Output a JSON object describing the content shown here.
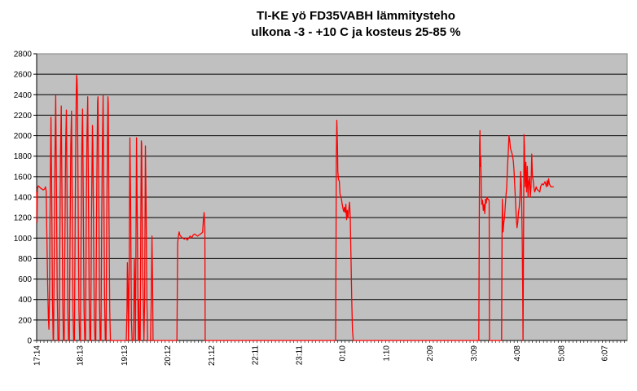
{
  "chart_data": {
    "type": "line",
    "title_line1": "TI-KE yö FD35VABH lämmitysteho",
    "title_line2": "ulkona -3 - +10 C ja kosteus 25-85 %",
    "xlabel": "",
    "ylabel": "",
    "ylim": [
      0,
      2800
    ],
    "yticks": [
      0,
      200,
      400,
      600,
      800,
      1000,
      1200,
      1400,
      1600,
      1800,
      2000,
      2200,
      2400,
      2600,
      2800
    ],
    "x_tick_labels": [
      "17:14",
      "18:13",
      "19:13",
      "20:12",
      "21:12",
      "22:11",
      "23:11",
      "0:10",
      "1:10",
      "2:09",
      "3:09",
      "4:08",
      "5:08",
      "6:07"
    ],
    "x_label_times_min": [
      1034,
      1093,
      1153,
      1212,
      1272,
      1331,
      1391,
      1450,
      1510,
      1569,
      1629,
      1688,
      1748,
      1807
    ],
    "x_range_min": [
      1034,
      1838
    ],
    "grid": true,
    "background": "#c0c0c0",
    "series_color": "#ff0000",
    "series": [
      {
        "points": [
          [
            1034,
            1450
          ],
          [
            1034.5,
            1150
          ],
          [
            1035,
            1480
          ],
          [
            1036,
            1510
          ],
          [
            1037,
            1505
          ],
          [
            1039,
            1490
          ],
          [
            1041,
            1480
          ],
          [
            1043,
            1470
          ],
          [
            1045,
            1480
          ],
          [
            1046,
            1500
          ],
          [
            1047,
            1460
          ],
          [
            1048,
            1000
          ],
          [
            1049,
            550
          ],
          [
            1050,
            220
          ],
          [
            1050.7,
            110
          ],
          [
            1051.5,
            500
          ],
          [
            1052.5,
            1500
          ],
          [
            1053.5,
            2180
          ],
          [
            1054.5,
            1400
          ],
          [
            1055.5,
            400
          ],
          [
            1056.5,
            0
          ],
          [
            1057,
            0
          ],
          [
            1058,
            800
          ],
          [
            1059,
            1800
          ],
          [
            1060,
            2390
          ],
          [
            1061,
            1500
          ],
          [
            1062,
            500
          ],
          [
            1063,
            0
          ],
          [
            1064.5,
            0
          ],
          [
            1065.5,
            900
          ],
          [
            1066.5,
            1800
          ],
          [
            1067.5,
            2290
          ],
          [
            1068.5,
            1400
          ],
          [
            1069.5,
            400
          ],
          [
            1070.5,
            0
          ],
          [
            1071.5,
            0
          ],
          [
            1072.5,
            1000
          ],
          [
            1073.5,
            1900
          ],
          [
            1074.5,
            2250
          ],
          [
            1075.5,
            1300
          ],
          [
            1076.5,
            300
          ],
          [
            1077.5,
            0
          ],
          [
            1078.5,
            0
          ],
          [
            1079.5,
            1000
          ],
          [
            1080.5,
            1900
          ],
          [
            1081.5,
            2240
          ],
          [
            1082.5,
            1300
          ],
          [
            1083.5,
            300
          ],
          [
            1084.5,
            0
          ],
          [
            1085.5,
            0
          ],
          [
            1086.5,
            1200
          ],
          [
            1087.5,
            2100
          ],
          [
            1088,
            2450
          ],
          [
            1088.5,
            2590
          ],
          [
            1089,
            2550
          ],
          [
            1089.5,
            2400
          ],
          [
            1090.5,
            1400
          ],
          [
            1091.5,
            300
          ],
          [
            1092.5,
            0
          ],
          [
            1093.5,
            0
          ],
          [
            1094.5,
            1100
          ],
          [
            1095.5,
            1900
          ],
          [
            1096.5,
            2260
          ],
          [
            1097.5,
            1300
          ],
          [
            1098.5,
            300
          ],
          [
            1099.5,
            0
          ],
          [
            1100.5,
            0
          ],
          [
            1101.5,
            1200
          ],
          [
            1102.5,
            2000
          ],
          [
            1103.5,
            2380
          ],
          [
            1104.5,
            1400
          ],
          [
            1105.5,
            400
          ],
          [
            1106.5,
            0
          ],
          [
            1107.5,
            0
          ],
          [
            1108.5,
            1100
          ],
          [
            1109.5,
            1800
          ],
          [
            1110,
            2100
          ],
          [
            1110.5,
            1900
          ],
          [
            1111.5,
            1000
          ],
          [
            1112.5,
            200
          ],
          [
            1113.5,
            0
          ],
          [
            1114.5,
            0
          ],
          [
            1115.5,
            1200
          ],
          [
            1116.5,
            2000
          ],
          [
            1117,
            2330
          ],
          [
            1117.5,
            2380
          ],
          [
            1118.5,
            1500
          ],
          [
            1119.5,
            400
          ],
          [
            1120.5,
            0
          ],
          [
            1121.5,
            0
          ],
          [
            1122.5,
            1100
          ],
          [
            1123.5,
            1900
          ],
          [
            1124.5,
            2390
          ],
          [
            1125.5,
            1400
          ],
          [
            1126.5,
            400
          ],
          [
            1127.5,
            0
          ],
          [
            1128.5,
            0
          ],
          [
            1129.5,
            1200
          ],
          [
            1130.5,
            2000
          ],
          [
            1131,
            2380
          ],
          [
            1131.5,
            2320
          ],
          [
            1132.5,
            1200
          ],
          [
            1133.5,
            300
          ],
          [
            1134.5,
            0
          ],
          [
            1156,
            0
          ],
          [
            1157,
            300
          ],
          [
            1157.5,
            760
          ],
          [
            1158.5,
            400
          ],
          [
            1159,
            0
          ],
          [
            1160,
            700
          ],
          [
            1161,
            1980
          ],
          [
            1162,
            1300
          ],
          [
            1163,
            200
          ],
          [
            1164,
            0
          ],
          [
            1166,
            0
          ],
          [
            1167,
            800
          ],
          [
            1168,
            400
          ],
          [
            1168.5,
            0
          ],
          [
            1169,
            600
          ],
          [
            1170,
            1980
          ],
          [
            1171,
            1200
          ],
          [
            1172,
            300
          ],
          [
            1172.5,
            0
          ],
          [
            1173,
            400
          ],
          [
            1174,
            0
          ],
          [
            1175,
            0
          ],
          [
            1176,
            1300
          ],
          [
            1176.5,
            1950
          ],
          [
            1177,
            1920
          ],
          [
            1177.5,
            1400
          ],
          [
            1178,
            800
          ],
          [
            1179,
            400
          ],
          [
            1180,
            0
          ],
          [
            1181,
            400
          ],
          [
            1182,
            1900
          ],
          [
            1183,
            1300
          ],
          [
            1184,
            400
          ],
          [
            1185,
            0
          ],
          [
            1188,
            0
          ],
          [
            1189,
            0
          ],
          [
            1190,
            400
          ],
          [
            1191,
            1020
          ],
          [
            1192,
            400
          ],
          [
            1192.5,
            0
          ],
          [
            1194,
            0
          ],
          [
            1225,
            0
          ],
          [
            1226,
            950
          ],
          [
            1227,
            1020
          ],
          [
            1228,
            1060
          ],
          [
            1229,
            1030
          ],
          [
            1231,
            1010
          ],
          [
            1233,
            1000
          ],
          [
            1235,
            990
          ],
          [
            1237,
            1000
          ],
          [
            1239,
            980
          ],
          [
            1241,
            1000
          ],
          [
            1243,
            1020
          ],
          [
            1245,
            1000
          ],
          [
            1247,
            1030
          ],
          [
            1249,
            1040
          ],
          [
            1251,
            1030
          ],
          [
            1253,
            1020
          ],
          [
            1255,
            1030
          ],
          [
            1257,
            1040
          ],
          [
            1259,
            1050
          ],
          [
            1260,
            1060
          ],
          [
            1261,
            1180
          ],
          [
            1262,
            1250
          ],
          [
            1263,
            1100
          ],
          [
            1263.5,
            0
          ],
          [
            1370,
            0
          ],
          [
            1390,
            0
          ],
          [
            1420,
            0
          ],
          [
            1441,
            0
          ],
          [
            1441.5,
            900
          ],
          [
            1442,
            1800
          ],
          [
            1442.7,
            2150
          ],
          [
            1443.5,
            1900
          ],
          [
            1444,
            1650
          ],
          [
            1445,
            1570
          ],
          [
            1446,
            1560
          ],
          [
            1447,
            1430
          ],
          [
            1448,
            1410
          ],
          [
            1449,
            1380
          ],
          [
            1450,
            1330
          ],
          [
            1451,
            1290
          ],
          [
            1452,
            1260
          ],
          [
            1453,
            1300
          ],
          [
            1454,
            1250
          ],
          [
            1455,
            1330
          ],
          [
            1456,
            1180
          ],
          [
            1457,
            1270
          ],
          [
            1458,
            1200
          ],
          [
            1459,
            1280
          ],
          [
            1460,
            1350
          ],
          [
            1461,
            1200
          ],
          [
            1462,
            800
          ],
          [
            1463,
            400
          ],
          [
            1464,
            100
          ],
          [
            1465,
            0
          ],
          [
            1550,
            0
          ],
          [
            1610,
            0
          ],
          [
            1636,
            0
          ],
          [
            1636.5,
            1000
          ],
          [
            1637,
            1900
          ],
          [
            1637.5,
            2050
          ],
          [
            1638,
            1700
          ],
          [
            1638.5,
            1800
          ],
          [
            1639,
            1600
          ],
          [
            1639.5,
            1400
          ],
          [
            1640,
            1330
          ],
          [
            1641,
            1370
          ],
          [
            1642,
            1270
          ],
          [
            1643,
            1330
          ],
          [
            1644,
            1240
          ],
          [
            1645,
            1380
          ],
          [
            1646,
            1340
          ],
          [
            1647,
            1400
          ],
          [
            1648,
            1380
          ],
          [
            1649,
            1380
          ],
          [
            1650,
            1360
          ],
          [
            1650.5,
            0
          ],
          [
            1667,
            0
          ],
          [
            1667.5,
            1000
          ],
          [
            1668,
            1380
          ],
          [
            1669,
            1060
          ],
          [
            1670,
            1150
          ],
          [
            1671,
            1200
          ],
          [
            1672,
            1320
          ],
          [
            1673,
            1420
          ],
          [
            1674,
            1500
          ],
          [
            1675,
            1700
          ],
          [
            1676,
            1820
          ],
          [
            1677,
            2000
          ],
          [
            1678,
            1960
          ],
          [
            1679,
            1880
          ],
          [
            1680,
            1850
          ],
          [
            1681,
            1830
          ],
          [
            1682,
            1800
          ],
          [
            1683,
            1750
          ],
          [
            1684,
            1650
          ],
          [
            1685,
            1500
          ],
          [
            1686,
            1350
          ],
          [
            1687,
            1200
          ],
          [
            1688,
            1100
          ],
          [
            1689,
            1150
          ],
          [
            1690,
            1250
          ],
          [
            1691,
            1300
          ],
          [
            1692,
            1400
          ],
          [
            1693,
            1650
          ],
          [
            1694,
            1500
          ],
          [
            1695,
            1000
          ],
          [
            1695.7,
            470
          ],
          [
            1696.2,
            0
          ],
          [
            1697,
            1300
          ],
          [
            1697.5,
            2010
          ],
          [
            1698,
            1900
          ],
          [
            1699,
            1500
          ],
          [
            1700,
            1740
          ],
          [
            1701,
            1450
          ],
          [
            1702,
            1700
          ],
          [
            1703,
            1400
          ],
          [
            1704,
            1550
          ],
          [
            1705,
            1600
          ],
          [
            1706,
            1400
          ],
          [
            1707,
            1500
          ],
          [
            1708,
            1820
          ],
          [
            1709,
            1600
          ],
          [
            1710,
            1560
          ],
          [
            1711,
            1490
          ],
          [
            1712,
            1450
          ],
          [
            1713,
            1470
          ],
          [
            1714,
            1500
          ],
          [
            1715,
            1480
          ],
          [
            1716,
            1470
          ],
          [
            1718,
            1460
          ],
          [
            1719,
            1450
          ],
          [
            1720,
            1500
          ],
          [
            1722,
            1530
          ],
          [
            1724,
            1520
          ],
          [
            1726,
            1550
          ],
          [
            1727,
            1530
          ],
          [
            1728,
            1500
          ],
          [
            1729,
            1560
          ],
          [
            1730,
            1510
          ],
          [
            1731,
            1580
          ],
          [
            1732,
            1530
          ],
          [
            1734,
            1500
          ],
          [
            1736,
            1500
          ],
          [
            1738,
            1500
          ]
        ]
      }
    ]
  }
}
